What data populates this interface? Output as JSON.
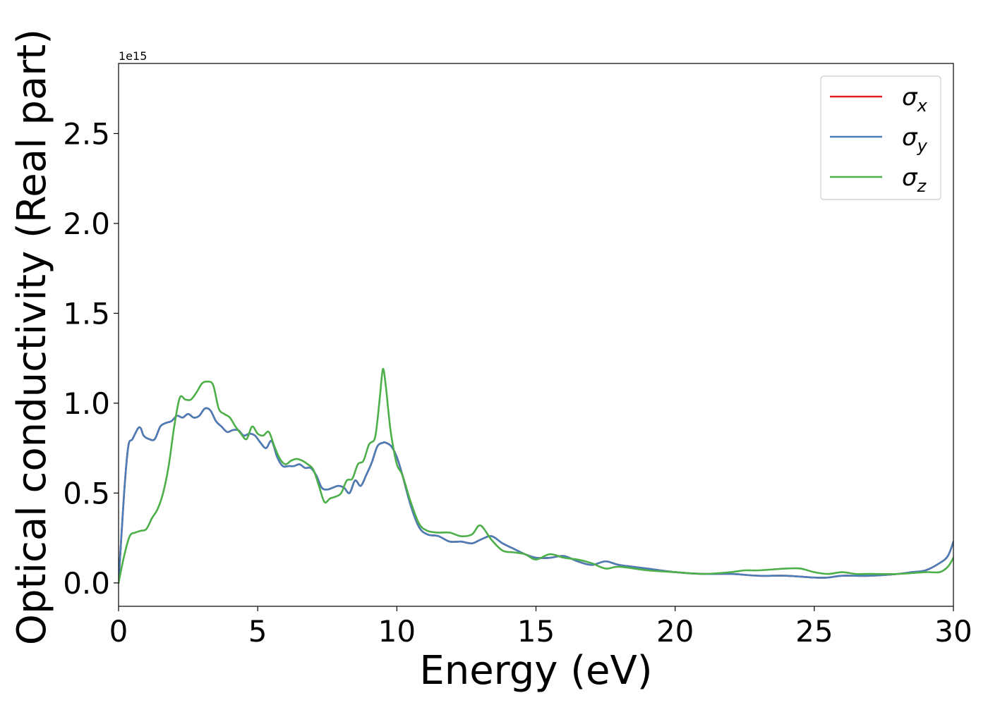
{
  "chart_data": {
    "type": "line",
    "xlabel": "Energy (eV)",
    "ylabel": "Optical conductivity (Real part)",
    "y_offset_label": "1e15",
    "xlim": [
      0,
      30
    ],
    "ylim": [
      -0.13,
      2.89
    ],
    "x_ticks": [
      0,
      5,
      10,
      15,
      20,
      25,
      30
    ],
    "x_tick_labels": [
      "0",
      "5",
      "10",
      "15",
      "20",
      "25",
      "30"
    ],
    "y_ticks": [
      0.0,
      0.5,
      1.0,
      1.5,
      2.0,
      2.5
    ],
    "y_tick_labels": [
      "0.0",
      "0.5",
      "1.0",
      "1.5",
      "2.0",
      "2.5"
    ],
    "grid": false,
    "legend_position": "top-right",
    "colors": {
      "sigma_x": "#e41a1c",
      "sigma_y": "#4a7eb8",
      "sigma_z": "#4daf4a"
    },
    "series": [
      {
        "name": "σx",
        "legend_base": "σ",
        "legend_sub": "x",
        "color": "#e41a1c",
        "x": [
          0,
          0.2,
          0.35,
          0.5,
          0.7,
          0.8,
          0.9,
          1.1,
          1.3,
          1.5,
          1.7,
          1.9,
          2.1,
          2.3,
          2.5,
          2.7,
          2.9,
          3.1,
          3.3,
          3.5,
          3.7,
          3.9,
          4.1,
          4.3,
          4.5,
          4.7,
          4.9,
          5.1,
          5.3,
          5.5,
          5.7,
          5.9,
          6.1,
          6.3,
          6.5,
          6.7,
          6.9,
          7.1,
          7.3,
          7.5,
          7.7,
          7.9,
          8.1,
          8.3,
          8.5,
          8.7,
          8.9,
          9.1,
          9.3,
          9.5,
          9.6,
          9.8,
          10.0,
          10.2,
          10.5,
          10.8,
          11.1,
          11.5,
          11.9,
          12.3,
          12.7,
          13.0,
          13.4,
          13.8,
          14.2,
          14.6,
          15.0,
          15.5,
          16.0,
          16.5,
          17.0,
          17.5,
          18.0,
          19.0,
          20.0,
          21.0,
          22.0,
          23.0,
          24.0,
          25.0,
          25.5,
          26.0,
          27.0,
          28.0,
          28.5,
          29.0,
          29.5,
          29.8,
          30.0
        ],
        "values": [
          0.0,
          0.5,
          0.76,
          0.8,
          0.86,
          0.86,
          0.82,
          0.8,
          0.8,
          0.87,
          0.89,
          0.9,
          0.93,
          0.92,
          0.94,
          0.92,
          0.93,
          0.97,
          0.96,
          0.9,
          0.87,
          0.84,
          0.85,
          0.85,
          0.82,
          0.83,
          0.82,
          0.78,
          0.75,
          0.79,
          0.7,
          0.65,
          0.65,
          0.65,
          0.66,
          0.64,
          0.64,
          0.6,
          0.53,
          0.52,
          0.53,
          0.54,
          0.53,
          0.5,
          0.57,
          0.54,
          0.6,
          0.67,
          0.76,
          0.78,
          0.78,
          0.76,
          0.7,
          0.6,
          0.43,
          0.31,
          0.27,
          0.26,
          0.23,
          0.23,
          0.22,
          0.24,
          0.26,
          0.22,
          0.19,
          0.16,
          0.14,
          0.14,
          0.15,
          0.12,
          0.1,
          0.12,
          0.1,
          0.08,
          0.06,
          0.05,
          0.05,
          0.04,
          0.04,
          0.03,
          0.03,
          0.04,
          0.04,
          0.05,
          0.06,
          0.07,
          0.11,
          0.15,
          0.23
        ]
      },
      {
        "name": "σy",
        "legend_base": "σ",
        "legend_sub": "y",
        "color": "#4a7eb8",
        "x": [
          0,
          0.2,
          0.35,
          0.5,
          0.7,
          0.8,
          0.9,
          1.1,
          1.3,
          1.5,
          1.7,
          1.9,
          2.1,
          2.3,
          2.5,
          2.7,
          2.9,
          3.1,
          3.3,
          3.5,
          3.7,
          3.9,
          4.1,
          4.3,
          4.5,
          4.7,
          4.9,
          5.1,
          5.3,
          5.5,
          5.7,
          5.9,
          6.1,
          6.3,
          6.5,
          6.7,
          6.9,
          7.1,
          7.3,
          7.5,
          7.7,
          7.9,
          8.1,
          8.3,
          8.5,
          8.7,
          8.9,
          9.1,
          9.3,
          9.5,
          9.6,
          9.8,
          10.0,
          10.2,
          10.5,
          10.8,
          11.1,
          11.5,
          11.9,
          12.3,
          12.7,
          13.0,
          13.4,
          13.8,
          14.2,
          14.6,
          15.0,
          15.5,
          16.0,
          16.5,
          17.0,
          17.5,
          18.0,
          19.0,
          20.0,
          21.0,
          22.0,
          23.0,
          24.0,
          25.0,
          25.5,
          26.0,
          27.0,
          28.0,
          28.5,
          29.0,
          29.5,
          29.8,
          30.0
        ],
        "values": [
          0.0,
          0.5,
          0.76,
          0.8,
          0.86,
          0.86,
          0.82,
          0.8,
          0.8,
          0.87,
          0.89,
          0.9,
          0.93,
          0.92,
          0.94,
          0.92,
          0.93,
          0.97,
          0.96,
          0.9,
          0.87,
          0.84,
          0.85,
          0.85,
          0.82,
          0.83,
          0.82,
          0.78,
          0.75,
          0.79,
          0.7,
          0.65,
          0.65,
          0.65,
          0.66,
          0.64,
          0.64,
          0.6,
          0.53,
          0.52,
          0.53,
          0.54,
          0.53,
          0.5,
          0.57,
          0.54,
          0.6,
          0.67,
          0.76,
          0.78,
          0.78,
          0.76,
          0.7,
          0.6,
          0.43,
          0.31,
          0.27,
          0.26,
          0.23,
          0.23,
          0.22,
          0.24,
          0.26,
          0.22,
          0.19,
          0.16,
          0.14,
          0.14,
          0.15,
          0.12,
          0.1,
          0.12,
          0.1,
          0.08,
          0.06,
          0.05,
          0.05,
          0.04,
          0.04,
          0.03,
          0.03,
          0.04,
          0.04,
          0.05,
          0.06,
          0.07,
          0.11,
          0.15,
          0.23
        ]
      },
      {
        "name": "σz",
        "legend_base": "σ",
        "legend_sub": "z",
        "color": "#4daf4a",
        "x": [
          0,
          0.2,
          0.4,
          0.6,
          0.8,
          1.0,
          1.2,
          1.4,
          1.6,
          1.8,
          2.0,
          2.2,
          2.4,
          2.6,
          2.8,
          3.0,
          3.2,
          3.4,
          3.6,
          3.8,
          4.0,
          4.2,
          4.4,
          4.6,
          4.8,
          5.0,
          5.2,
          5.4,
          5.6,
          5.8,
          6.0,
          6.2,
          6.4,
          6.6,
          6.8,
          7.0,
          7.2,
          7.4,
          7.6,
          7.8,
          8.0,
          8.2,
          8.4,
          8.6,
          8.8,
          9.0,
          9.2,
          9.3,
          9.4,
          9.5,
          9.6,
          9.7,
          9.8,
          10.0,
          10.2,
          10.5,
          10.8,
          11.1,
          11.5,
          11.9,
          12.3,
          12.7,
          13.0,
          13.4,
          13.8,
          14.2,
          14.6,
          15.0,
          15.5,
          16.0,
          16.5,
          17.0,
          17.5,
          18.0,
          19.0,
          20.0,
          21.0,
          22.0,
          22.5,
          23.0,
          24.0,
          24.5,
          25.0,
          25.5,
          26.0,
          26.5,
          27.0,
          28.0,
          29.0,
          29.5,
          29.8,
          30.0
        ],
        "values": [
          0.0,
          0.15,
          0.26,
          0.28,
          0.29,
          0.3,
          0.36,
          0.41,
          0.5,
          0.65,
          0.87,
          1.03,
          1.02,
          1.02,
          1.06,
          1.11,
          1.12,
          1.1,
          0.97,
          0.94,
          0.92,
          0.87,
          0.83,
          0.8,
          0.87,
          0.83,
          0.82,
          0.84,
          0.76,
          0.69,
          0.66,
          0.68,
          0.69,
          0.68,
          0.66,
          0.63,
          0.54,
          0.45,
          0.47,
          0.48,
          0.5,
          0.57,
          0.58,
          0.66,
          0.68,
          0.77,
          0.8,
          0.9,
          1.05,
          1.19,
          1.1,
          0.95,
          0.82,
          0.66,
          0.6,
          0.45,
          0.33,
          0.29,
          0.28,
          0.28,
          0.26,
          0.27,
          0.32,
          0.24,
          0.18,
          0.17,
          0.16,
          0.13,
          0.16,
          0.14,
          0.13,
          0.11,
          0.08,
          0.09,
          0.07,
          0.06,
          0.05,
          0.06,
          0.07,
          0.07,
          0.08,
          0.08,
          0.06,
          0.05,
          0.06,
          0.05,
          0.05,
          0.05,
          0.06,
          0.06,
          0.09,
          0.14
        ]
      }
    ]
  }
}
